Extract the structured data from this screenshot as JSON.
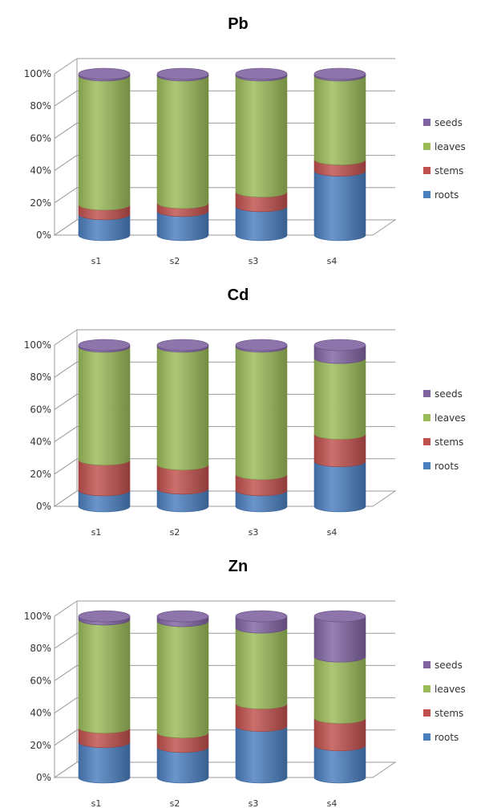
{
  "colors": {
    "roots": "#4a7ebf",
    "stems": "#c0504d",
    "leaves": "#9bbb59",
    "seeds": "#8064a2"
  },
  "chart_data": [
    {
      "type": "bar",
      "stacked": "percent",
      "title": "Pb",
      "categories": [
        "s1",
        "s2",
        "s3",
        "s4"
      ],
      "ylim": [
        0,
        100
      ],
      "yticks": [
        "0%",
        "20%",
        "40%",
        "60%",
        "80%",
        "100%"
      ],
      "legend_position": "right",
      "series": [
        {
          "name": "roots",
          "values": [
            13,
            15,
            18,
            40
          ]
        },
        {
          "name": "stems",
          "values": [
            6,
            5,
            9,
            7
          ]
        },
        {
          "name": "leaves",
          "values": [
            80,
            79,
            72,
            52
          ]
        },
        {
          "name": "seeds",
          "values": [
            1,
            1,
            1,
            1
          ]
        }
      ]
    },
    {
      "type": "bar",
      "stacked": "percent",
      "title": "Cd",
      "categories": [
        "s1",
        "s2",
        "s3",
        "s4"
      ],
      "ylim": [
        0,
        100
      ],
      "yticks": [
        "0%",
        "20%",
        "40%",
        "60%",
        "80%",
        "100%"
      ],
      "legend_position": "right",
      "series": [
        {
          "name": "roots",
          "values": [
            10,
            11,
            10,
            28
          ]
        },
        {
          "name": "stems",
          "values": [
            19,
            15,
            10,
            17
          ]
        },
        {
          "name": "leaves",
          "values": [
            70,
            73,
            79,
            47
          ]
        },
        {
          "name": "seeds",
          "values": [
            1,
            1,
            1,
            8
          ]
        }
      ]
    },
    {
      "type": "bar",
      "stacked": "percent",
      "title": "Zn",
      "categories": [
        "s1",
        "s2",
        "s3",
        "s4"
      ],
      "ylim": [
        0,
        100
      ],
      "yticks": [
        "0%",
        "20%",
        "40%",
        "60%",
        "80%",
        "100%"
      ],
      "legend_position": "right",
      "series": [
        {
          "name": "roots",
          "values": [
            22,
            19,
            32,
            20
          ]
        },
        {
          "name": "stems",
          "values": [
            9,
            9,
            14,
            17
          ]
        },
        {
          "name": "leaves",
          "values": [
            67,
            69,
            47,
            38
          ]
        },
        {
          "name": "seeds",
          "values": [
            2,
            3,
            7,
            25
          ]
        }
      ]
    }
  ]
}
